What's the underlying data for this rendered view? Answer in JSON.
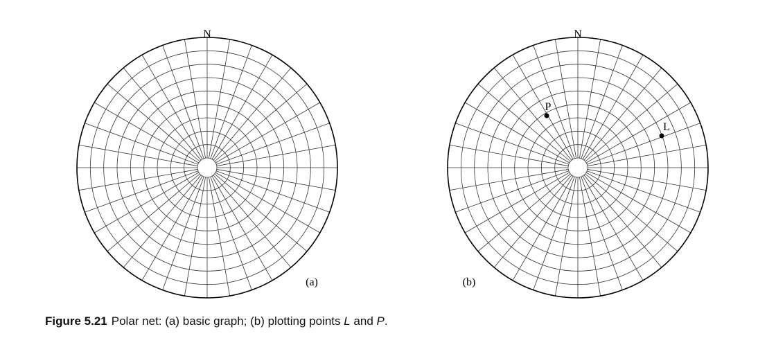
{
  "nets": [
    {
      "id": "a",
      "north_label": "N",
      "panel_label": "(a)",
      "points": []
    },
    {
      "id": "b",
      "north_label": "N",
      "panel_label": "(b)",
      "points": [
        {
          "label": "P"
        },
        {
          "label": "L"
        }
      ]
    }
  ],
  "caption": {
    "figure_number": "Figure 5.21",
    "text_part1": "Polar net: (a) basic graph; (b) plotting points ",
    "point_l": "L",
    "text_part2": " and ",
    "point_p": "P",
    "text_part3": "."
  },
  "colors": {
    "outer_circle": "#000000",
    "grid_lines": "#333333"
  }
}
